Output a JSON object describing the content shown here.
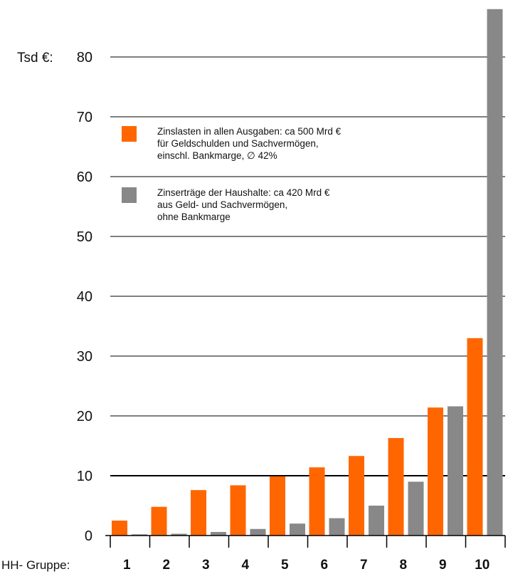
{
  "chart_data": {
    "type": "bar",
    "ylabel": "Tsd €:",
    "xlabel": "HH- Gruppe:",
    "categories": [
      "1",
      "2",
      "3",
      "4",
      "5",
      "6",
      "7",
      "8",
      "9",
      "10"
    ],
    "yticks": [
      "0",
      "10",
      "20",
      "30",
      "40",
      "50",
      "60",
      "70",
      "80"
    ],
    "ylim": [
      0,
      88
    ],
    "grid": true,
    "legend_position": "top-left",
    "series": [
      {
        "key": "zinslasten",
        "color": "#ff6600",
        "legend_lines": [
          "Zinslasten in allen Ausgaben: ca 500 Mrd €",
          "für Geldschulden und Sachvermögen,",
          "einschl. Bankmarge, ∅ 42%"
        ],
        "values": [
          2.5,
          4.8,
          7.6,
          8.4,
          9.9,
          11.4,
          13.3,
          16.3,
          21.4,
          33.0
        ]
      },
      {
        "key": "zinsertraege",
        "color": "#888888",
        "legend_lines": [
          "Zinserträge der Haushalte: ca 420 Mrd €",
          "aus Geld- und Sachvermögen,",
          "ohne Bankmarge"
        ],
        "values": [
          0.2,
          0.3,
          0.6,
          1.1,
          2.0,
          2.9,
          5.0,
          9.0,
          21.6,
          88.0
        ]
      }
    ]
  }
}
